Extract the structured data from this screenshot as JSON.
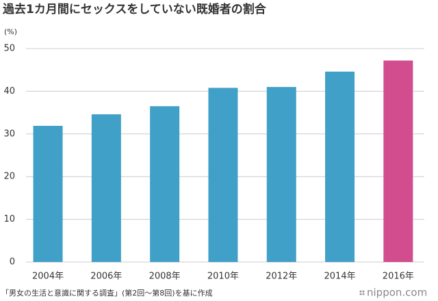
{
  "chart_data": {
    "type": "bar",
    "title": "過去1カ月間にセックスをしていない既婚者の割合",
    "y_unit": "(%)",
    "categories": [
      "2004年",
      "2006年",
      "2008年",
      "2010年",
      "2012年",
      "2014年",
      "2016年"
    ],
    "values": [
      31.9,
      34.6,
      36.5,
      40.8,
      41.0,
      44.6,
      47.2
    ],
    "colors": [
      "#40a0c8",
      "#40a0c8",
      "#40a0c8",
      "#40a0c8",
      "#40a0c8",
      "#40a0c8",
      "#d14d8e"
    ],
    "ylim": [
      0,
      50
    ],
    "yticks": [
      0,
      10,
      20,
      30,
      40,
      50
    ],
    "grid": true,
    "source": "「男女の生活と意識に関する調査」(第2回～第8回)を基に作成",
    "logo": "nippon.com"
  }
}
